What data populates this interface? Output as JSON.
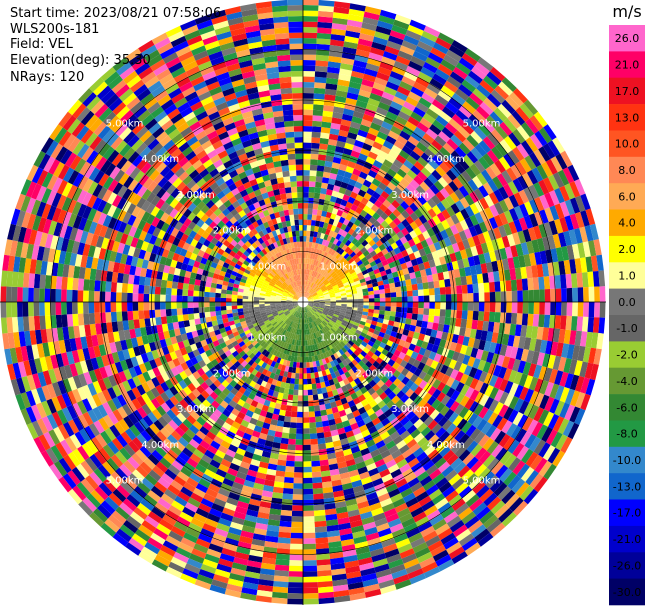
{
  "header": {
    "start_time": "Start time: 2023/08/21 07:58:06",
    "instrument": "WLS200s-181",
    "field": "Field: VEL",
    "elevation": "Elevation(deg): 35.30",
    "nrays": "NRays: 120"
  },
  "colorbar": {
    "unit": "m/s",
    "levels": [
      {
        "label": "26.0",
        "color": "#ff66cc"
      },
      {
        "label": "21.0",
        "color": "#ff0066"
      },
      {
        "label": "17.0",
        "color": "#ee1122"
      },
      {
        "label": "13.0",
        "color": "#ff3311"
      },
      {
        "label": "10.0",
        "color": "#ff5522"
      },
      {
        "label": "8.0",
        "color": "#ff8855"
      },
      {
        "label": "6.0",
        "color": "#ffaa55"
      },
      {
        "label": "4.0",
        "color": "#ffaa00"
      },
      {
        "label": "2.0",
        "color": "#ffff00"
      },
      {
        "label": "1.0",
        "color": "#ffff99"
      },
      {
        "label": "0.0",
        "color": "#777777"
      },
      {
        "label": "-1.0",
        "color": "#666666"
      },
      {
        "label": "-2.0",
        "color": "#99cc33"
      },
      {
        "label": "-4.0",
        "color": "#669933"
      },
      {
        "label": "-6.0",
        "color": "#338833"
      },
      {
        "label": "-8.0",
        "color": "#229944"
      },
      {
        "label": "-10.0",
        "color": "#3388cc"
      },
      {
        "label": "-13.0",
        "color": "#1166cc"
      },
      {
        "label": "-17.0",
        "color": "#0000ff"
      },
      {
        "label": "-21.0",
        "color": "#0000cc"
      },
      {
        "label": "-26.0",
        "color": "#000099"
      },
      {
        "label": "-30.0",
        "color": "#000066"
      }
    ]
  },
  "chart_data": {
    "type": "heatmap",
    "title": "",
    "field": "VEL",
    "units": "m/s",
    "nrays": 120,
    "elevation_deg": 35.3,
    "range_ring_labels": [
      {
        "label": "1.00km",
        "km": 1
      },
      {
        "label": "2.00km",
        "km": 2
      },
      {
        "label": "3.00km",
        "km": 3
      },
      {
        "label": "4.00km",
        "km": 4
      },
      {
        "label": "5.00km",
        "km": 5
      }
    ],
    "max_range_km": 6,
    "grid": true
  }
}
